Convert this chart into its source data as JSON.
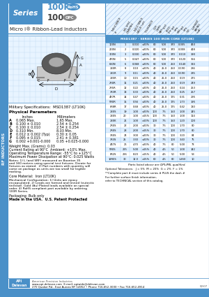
{
  "subtitle": "Micro I® Ribbon-Lead Inductors",
  "mil_spec": "Military Specifications:  MSD1387 (LT10K)",
  "physical_params_title": "Physical Parameters",
  "params": [
    [
      "A",
      "0.065 Max.",
      "1.65 Max."
    ],
    [
      "B",
      "0.100 ± 0.010",
      "2.54 ± 0.254"
    ],
    [
      "C",
      "0.100 ± 0.010",
      "2.54 ± 0.254"
    ],
    [
      "D",
      "0.310 Min.",
      "8.03 Min."
    ],
    [
      "E",
      "0.012 ± 0.002 (Typ)",
      "0.30 ± 0.05"
    ],
    [
      "F",
      "0.095 ± 0.015",
      "2.41 ± 0.381"
    ],
    [
      "G",
      "0.002 +0.001-0.000",
      "0.05 +0.025-0.000"
    ]
  ],
  "weight": "Weight Max. (Grams): 0.03",
  "current_rating": "Current Rating at 90°C  Ambient: +10% Max.",
  "op_temp": "Operating Temperature Range: -55°C to +125°C",
  "max_power": "Maximum Power Dissipation at 90°C: 0.025 Watts",
  "core_material": "Core Material:  Iron (LT10K)",
  "packaging": "Packaging: Bulk only",
  "made_in_usa": "Made in the USA.  U.S. Patent Protected",
  "table_header": "MSD1387 - SERIES 100 IRON CORE (LT10K)",
  "col_headers": [
    "INDUCTANCE\n#",
    "MIL SPEC\nDRAWING",
    "INDUCTANCE\nVALUE (uH)",
    "TOLERANCE",
    "DCR\nOHMS\nMAX.",
    "TEST\nFREQ.\nkHz",
    "SRF\nMHz\nMIN.",
    "SRF\nMHz\nTYP.",
    "CURRENT\nRATING\n(mA)"
  ],
  "table_data": [
    [
      "100N",
      "1",
      "0.010",
      "±20%",
      "80",
      "500",
      "370",
      "0.005",
      "450"
    ],
    [
      "200N",
      "2",
      "0.020",
      "±20%",
      "80",
      "500",
      "370",
      "0.008",
      "418"
    ],
    [
      "300N",
      "3",
      "0.030",
      "±20%",
      "80",
      "500",
      "370",
      "0.110",
      "390"
    ],
    [
      "470N",
      "5",
      "0.047",
      "±20%",
      "80",
      "500",
      "370",
      "0.120",
      "356"
    ],
    [
      "680N",
      "6",
      "0.068",
      "±20%",
      "80",
      "500",
      "250",
      "0.140",
      "324"
    ],
    [
      "1R0R",
      "8",
      "0.10",
      "±20%",
      "40",
      "25.0",
      "250",
      "0.190",
      "286"
    ],
    [
      "1R1R",
      "9",
      "0.11",
      "±20%",
      "40",
      "25.0",
      "250",
      "0.190",
      "285"
    ],
    [
      "1R5R",
      "10",
      "0.15",
      "±20%",
      "40",
      "25.0",
      "250",
      "0.19",
      "275"
    ],
    [
      "2R0R",
      "11",
      "0.21",
      "±20%",
      "40",
      "25.0",
      "250",
      "0.19",
      "249"
    ],
    [
      "2R5R",
      "12",
      "0.22",
      "±20%",
      "40",
      "25.0",
      "250",
      "0.24",
      "253"
    ],
    [
      "3R3R",
      "13",
      "0.33",
      "±20%",
      "40",
      "25.0",
      "250",
      "0.25",
      "257"
    ],
    [
      "4R7R",
      "14",
      "0.47",
      "±20%",
      "40",
      "25.0",
      "175",
      "0.31",
      "295"
    ],
    [
      "5R0R",
      "15",
      "0.56",
      "±20%",
      "40",
      "25.0",
      "175",
      "1.73",
      "195"
    ],
    [
      "6R8R",
      "17",
      "0.68",
      "±20%",
      "40",
      "25.0",
      "175",
      "0.42",
      "130"
    ],
    [
      "1R0S",
      "19",
      "1.00",
      "±20%",
      "100",
      "7.5",
      "150",
      "1.00",
      "145"
    ],
    [
      "1R0S",
      "20",
      "1.00",
      "±15%",
      "100",
      "7.5",
      "150",
      "1.00",
      "114"
    ],
    [
      "1R0K",
      "21",
      "1.00",
      "±10%",
      "100",
      "7.5",
      "150",
      "1.20",
      "100"
    ],
    [
      "2R0S",
      "22",
      "2.00",
      "±20%",
      "30",
      "7.5",
      "100",
      "1.70",
      "80"
    ],
    [
      "2R0S",
      "23",
      "2.00",
      "±15%",
      "30",
      "7.5",
      "100",
      "1.70",
      "80"
    ],
    [
      "3R0S",
      "24",
      "3.00",
      "±20%",
      "30",
      "7.5",
      "100",
      "3.20",
      "84"
    ],
    [
      "3R3S",
      "25",
      "3.30",
      "±20%",
      "30",
      "7.5",
      "100",
      "3.40",
      "75"
    ],
    [
      "4R7S",
      "26",
      "4.70",
      "±20%",
      "40",
      "7.5",
      "80",
      "5.00",
      "73"
    ],
    [
      "5R0S",
      "225",
      "5.00",
      "±15%",
      "40",
      "4.5",
      "50",
      "1.00",
      "142"
    ],
    [
      "8R2S",
      "226",
      "8.20",
      "±15%",
      "40",
      "4.5",
      "50",
      "5.00",
      "53"
    ],
    [
      "12R0S",
      "30",
      "12.0",
      "±15%",
      "60",
      "4.5",
      "80",
      "1.450",
      "10"
    ]
  ],
  "optional_tolerances": "Optional Tolerances:   J = 5%  M = 20%  G = 2%  F = 1%",
  "complete_part_note": "*Complete part # must include series # PLUS the dash #",
  "further_info": "For further surface finish information,\nrefer to TECHNICAL section of this catalog.",
  "parts_qualified": "Parts listed above are QPL/MIL qualified.",
  "footer_email": "www.api-delevan.com  E-mail: apiwide@delevan.com",
  "footer_address": "270 Quaker Rd., East Aurora NY 14052 • Phone 716-652-3000 • Fax 716-652-4914",
  "footer_api": "American Precision Industries",
  "bg_color": "#ffffff",
  "blue": "#4a90c8",
  "light_blue": "#d0e8f8",
  "row_alt": "#ddeeff",
  "text_dark": "#000000",
  "date_code": "02/07",
  "notes_lines": [
    "Notes: 1) L (and SRF) measured on Boonton 35",
    "and 160 meters using special test fixtures. Derate for",
    "fixtures as stated.  2) Part numbers with quantity will",
    "come on package as units are too small for legible",
    "marking."
  ],
  "mech_lines": [
    "Mechanical Configuration: 1) Units are epoxy",
    "encapsulated. 2) Leads are formed and tinned (eutectic",
    "tin/lead). Gold (Au) Plated leads available on special",
    "order. 4) RoHS compliant part available by ordering",
    "100R Series."
  ]
}
